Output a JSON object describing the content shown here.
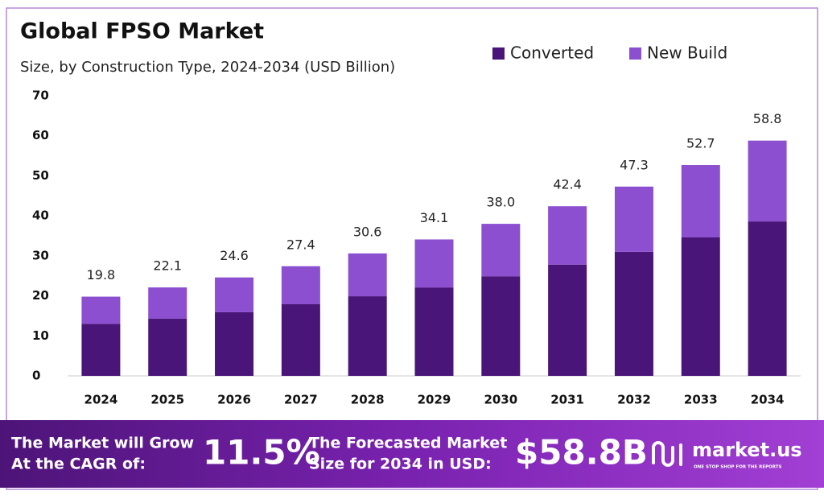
{
  "chart_data": {
    "type": "stacked_bar",
    "title": "Global FPSO Market",
    "subtitle": "Size, by Construction Type, 2024-2034 (USD Billion)",
    "categories": [
      "2024",
      "2025",
      "2026",
      "2027",
      "2028",
      "2029",
      "2030",
      "2031",
      "2032",
      "2033",
      "2034"
    ],
    "series": [
      {
        "name": "Converted",
        "color": "#4a1578",
        "values": [
          13.0,
          14.3,
          15.9,
          17.9,
          19.9,
          22.1,
          24.9,
          27.8,
          31.0,
          34.6,
          38.6
        ]
      },
      {
        "name": "New Build",
        "color": "#8c4fd0",
        "values": [
          6.8,
          7.8,
          8.7,
          9.5,
          10.7,
          12.0,
          13.1,
          14.6,
          16.3,
          18.1,
          20.2
        ]
      }
    ],
    "totals": {
      "values": [
        19.8,
        22.1,
        24.6,
        27.4,
        30.6,
        34.1,
        38.0,
        42.4,
        47.3,
        52.7,
        58.8
      ],
      "value_labels": [
        "19.8",
        "22.1",
        "24.6",
        "27.4",
        "30.6",
        "34.1",
        "38.0",
        "42.4",
        "47.3",
        "52.7",
        "58.8"
      ]
    },
    "ylim": [
      0,
      70
    ],
    "yticks": [
      0,
      10,
      20,
      30,
      40,
      50,
      60,
      70
    ],
    "grid": false,
    "legend": "top-right"
  },
  "footer": {
    "cagr_text": [
      "The Market will Grow",
      "At the CAGR of:"
    ],
    "cagr": "11.5%",
    "forecast_text": [
      "The Forecasted Market",
      "Size for 2034 in USD:"
    ],
    "forecast": "$58.8B",
    "brand": "market.us",
    "tagline": "ONE STOP SHOP FOR THE REPORTS"
  }
}
